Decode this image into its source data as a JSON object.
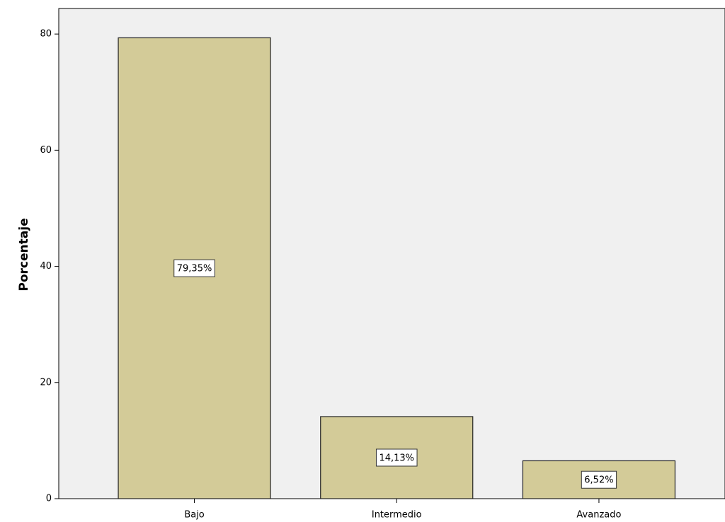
{
  "chart_data": {
    "type": "bar",
    "y_label": "Porcentaje",
    "categories": [
      "Bajo",
      "Intermedio",
      "Avanzado"
    ],
    "values": [
      79.35,
      14.13,
      6.52
    ],
    "value_labels": [
      "79,35%",
      "14,13%",
      "6,52%"
    ],
    "color": "#d3cb98",
    "ylim": [
      0,
      84.4
    ],
    "yticks": [
      0,
      20,
      40,
      60,
      80
    ]
  }
}
